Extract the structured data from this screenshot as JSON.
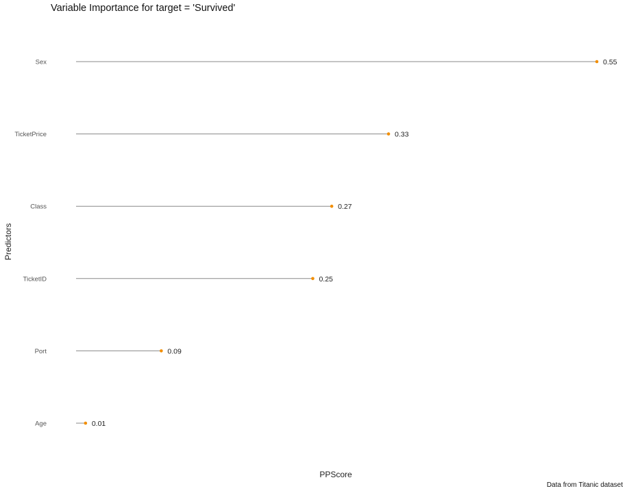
{
  "chart_data": {
    "type": "lollipop",
    "title": "Variable Importance for target = 'Survived'",
    "xlabel": "PPScore",
    "ylabel": "Predictors",
    "caption": "Data from Titanic dataset",
    "categories": [
      "Sex",
      "TicketPrice",
      "Class",
      "TicketID",
      "Port",
      "Age"
    ],
    "values": [
      0.55,
      0.33,
      0.27,
      0.25,
      0.09,
      0.01
    ],
    "data_labels": [
      "0.55",
      "0.33",
      "0.27",
      "0.25",
      "0.09",
      "0.01"
    ],
    "xlim": [
      0,
      0.55
    ],
    "grid": false,
    "colors": {
      "point": "#F28E00",
      "segment": "#888888"
    }
  }
}
